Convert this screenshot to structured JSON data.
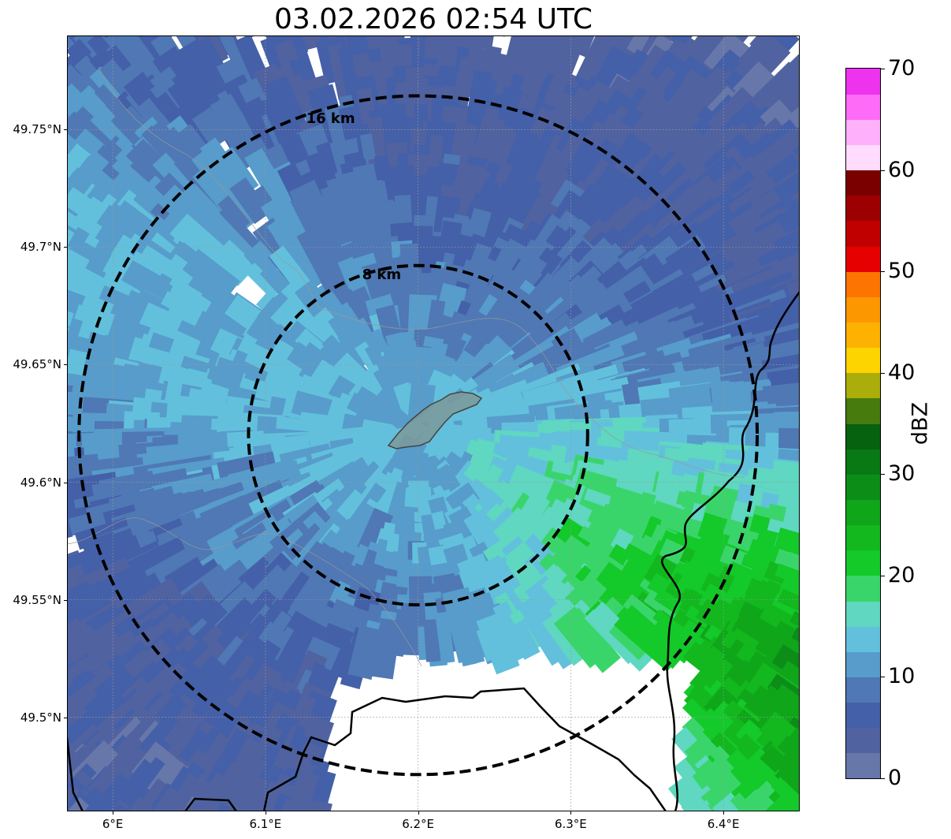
{
  "title": "03.02.2026 02:54 UTC",
  "map": {
    "x_ticks": [
      "6°E",
      "6.1°E",
      "6.2°E",
      "6.3°E",
      "6.4°E"
    ],
    "y_ticks": [
      "49.75°N",
      "49.7°N",
      "49.65°N",
      "49.6°N",
      "49.55°N",
      "49.5°N"
    ],
    "rings": [
      {
        "label": "8 km",
        "radius_km": 8
      },
      {
        "label": "16 km",
        "radius_km": 16
      }
    ],
    "highlight_region": "city-outline",
    "center_lon": 6.2,
    "center_lat": 49.62
  },
  "colorbar": {
    "label": "dBZ",
    "ticks": [
      "0",
      "10",
      "20",
      "30",
      "40",
      "50",
      "60",
      "70"
    ],
    "min": 0,
    "max": 70,
    "colors": [
      "#6877a9",
      "#5062a0",
      "#4460a8",
      "#4f78b4",
      "#579ccb",
      "#62c0dc",
      "#5fd7c1",
      "#3ad56a",
      "#14c92a",
      "#12b81e",
      "#0fa61a",
      "#0c8d18",
      "#087914",
      "#07620f",
      "#477b0e",
      "#aaad0a",
      "#fed400",
      "#fdb100",
      "#fd9700",
      "#fe7400",
      "#e60000",
      "#c00000",
      "#9c0000",
      "#7a0000",
      "#ffdbfd",
      "#ffb0fb",
      "#fe6bf7",
      "#ee33ee"
    ]
  }
}
